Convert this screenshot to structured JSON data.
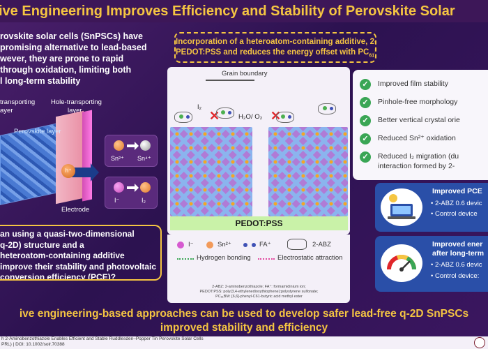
{
  "title": "ive Engineering Improves Efficiency and Stability of Perovskite Solar",
  "intro": {
    "lines": [
      "rovskite solar cells (SnPSCs)  have",
      "promising alternative to lead-based",
      "wever, they are prone to rapid",
      "through oxidation, limiting both",
      "l long-term stability"
    ]
  },
  "left_figure": {
    "etl_label_1": "transporting",
    "etl_label_2": "ayer",
    "htl_label_1": "Hole-transporting",
    "htl_label_2": "layer",
    "perovskite_label": "Perovskite layer",
    "hole_label": "h⁺",
    "electrode_label": "Electrode",
    "oxidation_1": {
      "from": "Sn²⁺",
      "to": "Sn⁴⁺"
    },
    "oxidation_2": {
      "from": "I⁻",
      "to": "I₂"
    }
  },
  "question": {
    "lines": [
      "an using a quasi-two-dimensional",
      "q-2D) structure and a",
      "heteroatom-containing additive",
      "improve their stability and photovoltaic",
      "conversion efficiency (PCE)?"
    ]
  },
  "center": {
    "headline_1": "Incorporation of a heteroatom-containing additive, 2-ABZ, improves alignm",
    "headline_2a": "PEDOT:PSS and reduces the energy offset with PC",
    "headline_2sub": "61",
    "headline_2b": "BM",
    "grain_boundary": "Grain boundary",
    "h2o_o2": "H₂O/ O₂",
    "i2": "I₂",
    "pedot": "PEDOT:PSS",
    "legend": {
      "iodide": "I⁻",
      "tin": "Sn²⁺",
      "fa": "FA⁺",
      "abz": "2-ABZ",
      "hbond": "Hydrogen bonding",
      "electrostatic": "Electrostatic attraction"
    },
    "footnotes": [
      "2-ABZ: 2-aminobenzothiazole; FA⁺: formamidinium ion;",
      "PEDOT:PSS: poly(3,4-ethylenedioxythiophene):polystyrene sulfonate;",
      "PC₆₁BM: [6,6]-phenyl-C61-butyric acid methyl ester"
    ]
  },
  "features": [
    "Improved film stability",
    "Pinhole-free morphology",
    "Better vertical crystal orie",
    "Reduced Sn²⁺ oxidation",
    "Reduced I₂ migration (du",
    "interaction formed by 2-"
  ],
  "performance": [
    {
      "heading": "Improved PCE",
      "lines": [
        "• 2-ABZ 0.6 devic",
        "• Control device"
      ]
    },
    {
      "heading": "Improved ener",
      "heading2": "after long-term",
      "lines": [
        "• 2-ABZ 0.6 devic",
        "• Control device:"
      ]
    }
  ],
  "conclusion": {
    "line1": "ive engineering-based approaches can be used to develop safer lead-free q-2D SnPSCs",
    "line2": "improved stability and efficiency"
  },
  "footer": {
    "line1": "h 2-Aminobenzothiazole Enables Efficient and Stable Ruddlesden–Popper Tin Perovskite Solar Cells",
    "line2": "PRL) | DOI: 10.1002/solr.70388"
  },
  "colors": {
    "accent": "#f5c542",
    "background": "#2c1250",
    "check": "#3aa655",
    "pedot": "#c9f2a8",
    "perf_box": "#2a4fa8",
    "cross": "#e0262a"
  },
  "icons": [
    "check-icon",
    "cross-icon",
    "laptop-solar-icon",
    "gauge-icon"
  ]
}
